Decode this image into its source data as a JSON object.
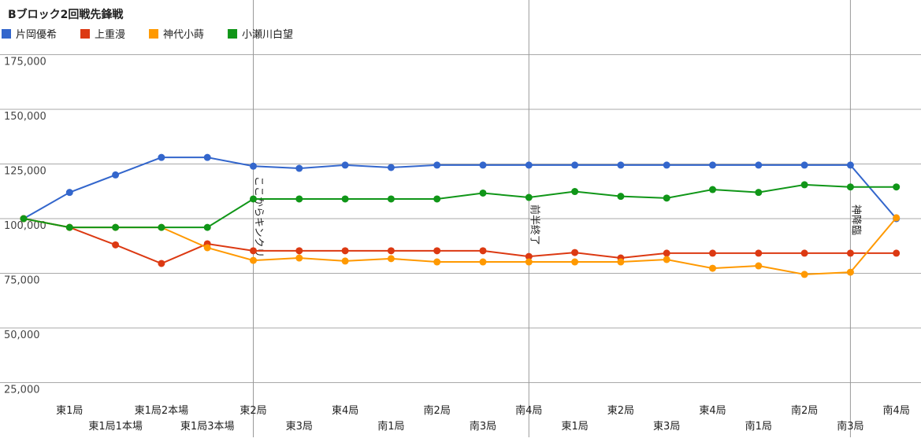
{
  "chart_data": {
    "type": "line",
    "title": "Bブロック2回戦先鋒戦",
    "categories": [
      null,
      "東1局",
      "東1局1本場",
      "東1局2本場",
      "東1局3本場",
      "東2局",
      "東3局",
      "東4局",
      "南1局",
      "南2局",
      "南3局",
      "南4局",
      "東1局",
      "東2局",
      "東3局",
      "東4局",
      "南1局",
      "南2局",
      "南3局",
      "南4局"
    ],
    "series": [
      {
        "name": "片岡優希",
        "color": "#3366cc",
        "values": [
          100000,
          112000,
          120000,
          128000,
          128000,
          124000,
          123000,
          124500,
          123400,
          124500,
          124500,
          124500,
          124500,
          124500,
          124500,
          124500,
          124500,
          124500,
          124500,
          100000
        ]
      },
      {
        "name": "上重漫",
        "color": "#dc3912",
        "values": [
          100000,
          96000,
          88000,
          79500,
          88500,
          85300,
          85300,
          85300,
          85300,
          85300,
          85300,
          82700,
          84500,
          82000,
          84200,
          84200,
          84200,
          84200,
          84200,
          84200
        ]
      },
      {
        "name": "神代小蒔",
        "color": "#ff9900",
        "values": [
          100000,
          96000,
          96000,
          96000,
          86700,
          80900,
          82000,
          80600,
          81700,
          80200,
          80200,
          80200,
          80200,
          80200,
          81300,
          77300,
          78400,
          74500,
          75500,
          100400
        ]
      },
      {
        "name": "小瀬川白望",
        "color": "#109618",
        "values": [
          100000,
          96000,
          96000,
          96000,
          96000,
          109000,
          109000,
          109000,
          109000,
          109000,
          111700,
          109700,
          112400,
          110200,
          109400,
          113300,
          112000,
          115500,
          114500,
          114500
        ]
      }
    ],
    "ylim": [
      0,
      200000
    ],
    "yticks": [
      {
        "value": 25000,
        "label": "25,000"
      },
      {
        "value": 50000,
        "label": "50,000"
      },
      {
        "value": 75000,
        "label": "75,000"
      },
      {
        "value": 100000,
        "label": "100,000"
      },
      {
        "value": 125000,
        "label": "125,000"
      },
      {
        "value": 150000,
        "label": "150,000"
      },
      {
        "value": 175000,
        "label": "175,000"
      }
    ],
    "grid": true,
    "annotations": [
      {
        "at": 5,
        "text": "ここからキンクリ"
      },
      {
        "at": 11,
        "text": "前半終了"
      },
      {
        "at": 18,
        "text": "神降臨"
      }
    ]
  }
}
